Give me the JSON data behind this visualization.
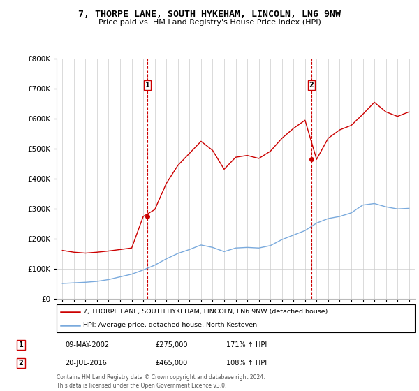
{
  "title": "7, THORPE LANE, SOUTH HYKEHAM, LINCOLN, LN6 9NW",
  "subtitle": "Price paid vs. HM Land Registry's House Price Index (HPI)",
  "legend_line1": "7, THORPE LANE, SOUTH HYKEHAM, LINCOLN, LN6 9NW (detached house)",
  "legend_line2": "HPI: Average price, detached house, North Kesteven",
  "annotation1_label": "1",
  "annotation1_date": "09-MAY-2002",
  "annotation1_price": "£275,000",
  "annotation1_hpi": "171% ↑ HPI",
  "annotation2_label": "2",
  "annotation2_date": "20-JUL-2016",
  "annotation2_price": "£465,000",
  "annotation2_hpi": "108% ↑ HPI",
  "footer": "Contains HM Land Registry data © Crown copyright and database right 2024.\nThis data is licensed under the Open Government Licence v3.0.",
  "red_color": "#cc0000",
  "blue_color": "#7aaadd",
  "background_color": "#ffffff",
  "grid_color": "#cccccc",
  "years": [
    1995,
    1996,
    1997,
    1998,
    1999,
    2000,
    2001,
    2002,
    2003,
    2004,
    2005,
    2006,
    2007,
    2008,
    2009,
    2010,
    2011,
    2012,
    2013,
    2014,
    2015,
    2016,
    2017,
    2018,
    2019,
    2020,
    2021,
    2022,
    2023,
    2024,
    2025
  ],
  "hpi_values": [
    52000,
    54000,
    56000,
    59000,
    65000,
    74000,
    83000,
    97000,
    113000,
    134000,
    152000,
    165000,
    180000,
    172000,
    158000,
    170000,
    172000,
    170000,
    178000,
    198000,
    213000,
    228000,
    253000,
    268000,
    275000,
    287000,
    313000,
    318000,
    307000,
    300000,
    302000
  ],
  "house_values": [
    162000,
    156000,
    153000,
    156000,
    160000,
    165000,
    170000,
    275000,
    298000,
    385000,
    445000,
    485000,
    525000,
    495000,
    432000,
    472000,
    478000,
    468000,
    492000,
    535000,
    568000,
    595000,
    465000,
    535000,
    563000,
    578000,
    615000,
    655000,
    623000,
    608000,
    623000
  ],
  "sale1_year": 2002.37,
  "sale1_price": 275000,
  "sale2_year": 2016.55,
  "sale2_price": 465000,
  "ylim": [
    0,
    800000
  ],
  "yticks": [
    0,
    100000,
    200000,
    300000,
    400000,
    500000,
    600000,
    700000,
    800000
  ]
}
